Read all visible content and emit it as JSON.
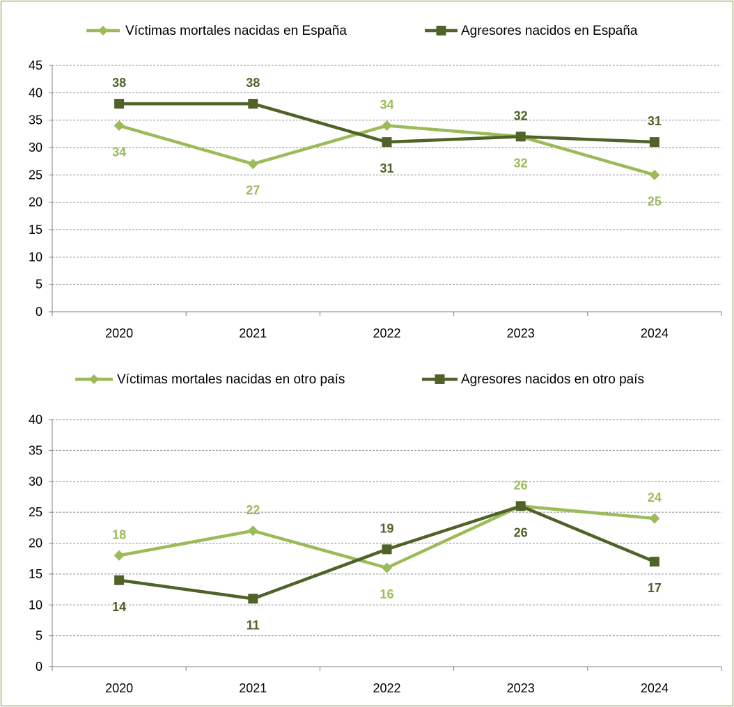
{
  "chart_data": [
    {
      "type": "line",
      "title": "",
      "xlabel": "",
      "ylabel": "",
      "categories": [
        "2020",
        "2021",
        "2022",
        "2023",
        "2024"
      ],
      "ylim": [
        0,
        45
      ],
      "yticks": [
        0,
        5,
        10,
        15,
        20,
        25,
        30,
        35,
        40,
        45
      ],
      "grid": true,
      "legend_position": "top",
      "series": [
        {
          "name": "Víctimas mortales nacidas en España",
          "values": [
            34,
            27,
            34,
            32,
            25
          ],
          "color": "#9bbb59",
          "marker": "diamond",
          "labels": [
            "34",
            "27",
            "34",
            "32",
            "25"
          ],
          "label_positions": [
            "below",
            "below",
            "above",
            "below",
            "below"
          ]
        },
        {
          "name": "Agresores nacidos en España",
          "values": [
            38,
            38,
            31,
            32,
            31
          ],
          "color": "#4f6228",
          "marker": "square",
          "labels": [
            "38",
            "38",
            "31",
            "32",
            "31"
          ],
          "label_positions": [
            "above",
            "above",
            "below",
            "above",
            "above"
          ]
        }
      ]
    },
    {
      "type": "line",
      "title": "",
      "xlabel": "",
      "ylabel": "",
      "categories": [
        "2020",
        "2021",
        "2022",
        "2023",
        "2024"
      ],
      "ylim": [
        0,
        40
      ],
      "yticks": [
        0,
        5,
        10,
        15,
        20,
        25,
        30,
        35,
        40
      ],
      "grid": true,
      "legend_position": "top",
      "series": [
        {
          "name": "Víctimas mortales nacidas en otro país",
          "values": [
            18,
            22,
            16,
            26,
            24
          ],
          "color": "#9bbb59",
          "marker": "diamond",
          "labels": [
            "18",
            "22",
            "16",
            "26",
            "24"
          ],
          "label_positions": [
            "above",
            "above",
            "below",
            "above",
            "above"
          ]
        },
        {
          "name": "Agresores nacidos en otro país",
          "values": [
            14,
            11,
            19,
            26,
            17
          ],
          "color": "#4f6228",
          "marker": "square",
          "labels": [
            "14",
            "11",
            "19",
            "26",
            "17"
          ],
          "label_positions": [
            "below",
            "below",
            "above",
            "below",
            "below"
          ]
        }
      ]
    }
  ]
}
